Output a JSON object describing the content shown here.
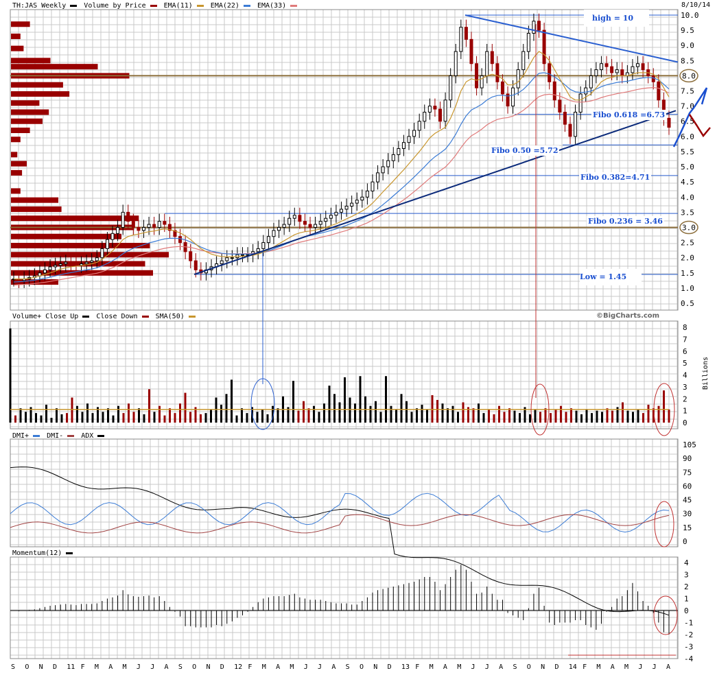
{
  "date_label": "8/10/14",
  "watermark": "©BigCharts.com",
  "y_unit_volume": "Billions",
  "legends": {
    "price": [
      {
        "text": "TH:JAS Weekly",
        "color": "#000000"
      },
      {
        "text": "Volume by Price",
        "color": "#990000"
      },
      {
        "text": "EMA(11)",
        "color": "#c8962e"
      },
      {
        "text": "EMA(22)",
        "color": "#3a7bd5"
      },
      {
        "text": "EMA(33)",
        "color": "#e07a7a"
      }
    ],
    "volume": [
      {
        "text": "Volume+ Close Up",
        "color": "#000000"
      },
      {
        "text": "Close Down",
        "color": "#990000"
      },
      {
        "text": "SMA(50)",
        "color": "#c8962e"
      }
    ],
    "dmi": [
      {
        "text": "DMI+",
        "color": "#3a7bd5"
      },
      {
        "text": "DMI-",
        "color": "#a04040"
      },
      {
        "text": "ADX",
        "color": "#000000"
      }
    ],
    "momentum": [
      {
        "text": "Momentum(12)",
        "color": "#000000"
      }
    ]
  },
  "annotations": {
    "high": "high = 10",
    "fibo618": "Fibo 0.618 =6.73",
    "fibo50": "Fibo 0.50 =5.72",
    "fibo382": "Fibo 0.382=4.71",
    "fibo236": "Fibo 0.236 = 3.46",
    "low": "Low = 1.45",
    "circle8": "8.0",
    "circle3": "3.0"
  },
  "x_ticks": [
    "S",
    "O",
    "N",
    "D",
    "11",
    "F",
    "M",
    "A",
    "M",
    "J",
    "J",
    "A",
    "S",
    "O",
    "N",
    "D",
    "12",
    "F",
    "M",
    "A",
    "M",
    "J",
    "J",
    "A",
    "S",
    "O",
    "N",
    "D",
    "13",
    "F",
    "M",
    "A",
    "M",
    "J",
    "J",
    "A",
    "S",
    "O",
    "N",
    "D",
    "14",
    "F",
    "M",
    "A",
    "M",
    "J",
    "J",
    "A"
  ],
  "chart_data": [
    {
      "type": "candlestick",
      "ylim": [
        0.5,
        10.0
      ],
      "yticks": [
        "0.5",
        "1.0",
        "1.5",
        "2.0",
        "2.5",
        "3.0",
        "3.5",
        "4.0",
        "4.5",
        "5.0",
        "5.5",
        "6.0",
        "6.5",
        "7.0",
        "7.5",
        "8.0",
        "8.5",
        "9.0",
        "9.5",
        "10.0"
      ],
      "close_series": [
        1.3,
        1.25,
        1.3,
        1.35,
        1.4,
        1.5,
        1.6,
        1.7,
        1.75,
        1.8,
        1.85,
        1.8,
        1.75,
        1.8,
        1.85,
        1.9,
        2.0,
        2.3,
        2.6,
        2.8,
        3.0,
        3.5,
        3.2,
        3.0,
        2.9,
        3.0,
        3.1,
        3.0,
        3.2,
        3.1,
        2.9,
        2.7,
        2.5,
        2.2,
        1.9,
        1.6,
        1.5,
        1.6,
        1.7,
        1.8,
        1.9,
        2.0,
        2.0,
        2.1,
        2.1,
        2.1,
        2.2,
        2.3,
        2.5,
        2.7,
        2.9,
        3.0,
        3.1,
        3.3,
        3.4,
        3.2,
        3.1,
        3.0,
        3.1,
        3.2,
        3.3,
        3.4,
        3.5,
        3.6,
        3.7,
        3.8,
        3.9,
        4.0,
        4.2,
        4.5,
        4.8,
        5.0,
        5.2,
        5.4,
        5.6,
        5.8,
        6.0,
        6.2,
        6.5,
        6.8,
        7.0,
        6.9,
        6.5,
        7.2,
        8.0,
        8.8,
        9.6,
        9.2,
        8.4,
        7.6,
        8.0,
        8.8,
        8.4,
        7.8,
        7.4,
        7.0,
        7.6,
        8.2,
        8.8,
        9.4,
        9.8,
        9.5,
        8.4,
        7.8,
        7.2,
        6.8,
        6.4,
        6.0,
        6.8,
        7.4,
        7.6,
        8.0,
        8.2,
        8.4,
        8.3,
        8.1,
        8.2,
        8.0,
        8.1,
        8.3,
        8.4,
        8.2,
        8.0,
        7.8,
        7.2,
        6.6,
        6.3
      ],
      "ema11": [
        1.3,
        1.3,
        1.3,
        1.32,
        1.35,
        1.4,
        1.45,
        1.5,
        1.56,
        1.62,
        1.67,
        1.7,
        1.72,
        1.74,
        1.77,
        1.8,
        1.85,
        1.95,
        2.08,
        2.23,
        2.4,
        2.6,
        2.7,
        2.75,
        2.78,
        2.82,
        2.86,
        2.88,
        2.92,
        2.95,
        2.93,
        2.88,
        2.82,
        2.72,
        2.6,
        2.45,
        2.3,
        2.2,
        2.12,
        2.07,
        2.04,
        2.03,
        2.03,
        2.04,
        2.05,
        2.06,
        2.08,
        2.12,
        2.18,
        2.26,
        2.36,
        2.46,
        2.56,
        2.66,
        2.76,
        2.82,
        2.86,
        2.88,
        2.91,
        2.95,
        3.0,
        3.06,
        3.12,
        3.2,
        3.28,
        3.36,
        3.45,
        3.54,
        3.65,
        3.8,
        3.98,
        4.17,
        4.35,
        4.53,
        4.72,
        4.9,
        5.1,
        5.3,
        5.5,
        5.72,
        5.95,
        6.1,
        6.2,
        6.3,
        6.6,
        7.0,
        7.5,
        7.8,
        7.9,
        7.85,
        7.9,
        8.0,
        8.05,
        8.0,
        7.9,
        7.7,
        7.7,
        7.8,
        8.0,
        8.3,
        8.6,
        8.8,
        8.7,
        8.5,
        8.2,
        7.9,
        7.6,
        7.3,
        7.2,
        7.2,
        7.3,
        7.4,
        7.6,
        7.8,
        7.9,
        7.95,
        8.0,
        8.0,
        8.0,
        8.05,
        8.1,
        8.1,
        8.1,
        8.05,
        7.9,
        7.6,
        7.3
      ],
      "ema22": [
        1.2,
        1.21,
        1.22,
        1.24,
        1.26,
        1.29,
        1.32,
        1.36,
        1.4,
        1.44,
        1.48,
        1.51,
        1.54,
        1.57,
        1.6,
        1.63,
        1.67,
        1.73,
        1.81,
        1.9,
        2.0,
        2.13,
        2.23,
        2.31,
        2.37,
        2.43,
        2.49,
        2.53,
        2.58,
        2.62,
        2.64,
        2.64,
        2.63,
        2.59,
        2.52,
        2.44,
        2.35,
        2.28,
        2.22,
        2.18,
        2.15,
        2.13,
        2.12,
        2.12,
        2.12,
        2.12,
        2.13,
        2.15,
        2.18,
        2.23,
        2.29,
        2.36,
        2.43,
        2.5,
        2.58,
        2.64,
        2.69,
        2.73,
        2.77,
        2.81,
        2.85,
        2.9,
        2.95,
        3.01,
        3.07,
        3.14,
        3.21,
        3.29,
        3.38,
        3.49,
        3.61,
        3.75,
        3.89,
        4.04,
        4.19,
        4.34,
        4.5,
        4.66,
        4.83,
        5.0,
        5.18,
        5.33,
        5.45,
        5.58,
        5.8,
        6.07,
        6.4,
        6.68,
        6.87,
        6.96,
        7.06,
        7.2,
        7.3,
        7.35,
        7.36,
        7.33,
        7.36,
        7.43,
        7.55,
        7.72,
        7.92,
        8.08,
        8.1,
        8.06,
        7.96,
        7.84,
        7.7,
        7.55,
        7.47,
        7.45,
        7.46,
        7.5,
        7.56,
        7.64,
        7.7,
        7.74,
        7.78,
        7.8,
        7.82,
        7.86,
        7.9,
        7.93,
        7.94,
        7.93,
        7.86,
        7.72,
        7.56
      ],
      "ema33": [
        1.1,
        1.11,
        1.12,
        1.13,
        1.15,
        1.17,
        1.19,
        1.22,
        1.25,
        1.28,
        1.31,
        1.34,
        1.37,
        1.4,
        1.43,
        1.46,
        1.49,
        1.54,
        1.6,
        1.67,
        1.75,
        1.85,
        1.93,
        2.0,
        2.06,
        2.12,
        2.17,
        2.22,
        2.27,
        2.31,
        2.34,
        2.36,
        2.37,
        2.36,
        2.34,
        2.3,
        2.25,
        2.21,
        2.18,
        2.16,
        2.14,
        2.13,
        2.13,
        2.13,
        2.13,
        2.14,
        2.14,
        2.16,
        2.18,
        2.21,
        2.25,
        2.3,
        2.35,
        2.4,
        2.46,
        2.51,
        2.55,
        2.59,
        2.63,
        2.67,
        2.71,
        2.75,
        2.8,
        2.85,
        2.9,
        2.96,
        3.02,
        3.08,
        3.15,
        3.24,
        3.34,
        3.44,
        3.55,
        3.67,
        3.79,
        3.91,
        4.04,
        4.18,
        4.32,
        4.47,
        4.62,
        4.75,
        4.87,
        4.99,
        5.17,
        5.38,
        5.63,
        5.85,
        6.02,
        6.12,
        6.24,
        6.38,
        6.48,
        6.56,
        6.6,
        6.62,
        6.67,
        6.75,
        6.86,
        7.0,
        7.17,
        7.31,
        7.37,
        7.39,
        7.37,
        7.33,
        7.26,
        7.18,
        7.14,
        7.13,
        7.14,
        7.17,
        7.22,
        7.28,
        7.33,
        7.37,
        7.41,
        7.44,
        7.47,
        7.51,
        7.55,
        7.58,
        7.6,
        7.61,
        7.59,
        7.52,
        7.43
      ],
      "volume_by_price": [
        {
          "price": 9.7,
          "relative": 0.12
        },
        {
          "price": 9.3,
          "relative": 0.06
        },
        {
          "price": 8.9,
          "relative": 0.08
        },
        {
          "price": 8.5,
          "relative": 0.25
        },
        {
          "price": 8.3,
          "relative": 0.55
        },
        {
          "price": 8.0,
          "relative": 0.75
        },
        {
          "price": 7.7,
          "relative": 0.33
        },
        {
          "price": 7.4,
          "relative": 0.37
        },
        {
          "price": 7.1,
          "relative": 0.18
        },
        {
          "price": 6.8,
          "relative": 0.24
        },
        {
          "price": 6.5,
          "relative": 0.2
        },
        {
          "price": 6.2,
          "relative": 0.12
        },
        {
          "price": 5.9,
          "relative": 0.06
        },
        {
          "price": 5.4,
          "relative": 0.04
        },
        {
          "price": 5.1,
          "relative": 0.1
        },
        {
          "price": 4.8,
          "relative": 0.07
        },
        {
          "price": 4.2,
          "relative": 0.06
        },
        {
          "price": 3.9,
          "relative": 0.3
        },
        {
          "price": 3.6,
          "relative": 0.32
        },
        {
          "price": 3.3,
          "relative": 0.81
        },
        {
          "price": 3.0,
          "relative": 0.78
        },
        {
          "price": 2.7,
          "relative": 0.7
        },
        {
          "price": 2.4,
          "relative": 0.88
        },
        {
          "price": 2.1,
          "relative": 1.0
        },
        {
          "price": 1.8,
          "relative": 0.85
        },
        {
          "price": 1.5,
          "relative": 0.9
        },
        {
          "price": 1.2,
          "relative": 0.3
        }
      ],
      "fibo_levels": [
        {
          "label": "high",
          "value": 10.0
        },
        {
          "label": "fibo618",
          "value": 6.73
        },
        {
          "label": "fibo50",
          "value": 5.72
        },
        {
          "label": "fibo382",
          "value": 4.71
        },
        {
          "label": "fibo236",
          "value": 3.46
        },
        {
          "label": "low",
          "value": 1.45
        }
      ],
      "horizontal_lines": [
        8.0,
        3.0
      ]
    },
    {
      "type": "bar",
      "name": "volume",
      "ylim": [
        0,
        8
      ],
      "yticks": [
        "0",
        "1",
        "2",
        "3",
        "4",
        "5",
        "6",
        "7",
        "8"
      ],
      "values": [
        7.9,
        0.6,
        1.2,
        0.9,
        1.3,
        0.8,
        0.6,
        1.5,
        0.4,
        1.2,
        0.7,
        0.8,
        2.1,
        1.4,
        0.9,
        1.6,
        0.8,
        1.3,
        0.9,
        1.2,
        0.6,
        1.4,
        0.8,
        1.6,
        0.9,
        1.2,
        0.7,
        2.8,
        0.9,
        1.4,
        0.6,
        1.2,
        0.8,
        1.6,
        2.5,
        0.9,
        1.3,
        0.7,
        0.8,
        1.1,
        2.1,
        1.5,
        2.4,
        3.6,
        0.6,
        1.2,
        0.8,
        1.3,
        0.9,
        1.1,
        0.7,
        1.4,
        1.2,
        2.2,
        1.3,
        3.5,
        1.0,
        1.8,
        1.2,
        1.4,
        0.9,
        1.6,
        3.1,
        2.4,
        1.7,
        3.8,
        2.1,
        1.6,
        3.9,
        2.2,
        1.4,
        1.8,
        0.9,
        3.9,
        1.4,
        1.1,
        2.4,
        1.8,
        0.9,
        1.2,
        1.5,
        1.1,
        2.3,
        1.9,
        1.6,
        1.2,
        1.4,
        0.9,
        1.7,
        1.3,
        1.2,
        1.6,
        0.8,
        1.1,
        0.7,
        1.4,
        0.9,
        1.2,
        1.0,
        0.8,
        1.3,
        0.7,
        1.1,
        0.9,
        1.2,
        0.8,
        1.1,
        1.4,
        0.9,
        1.2,
        1.0,
        0.7,
        1.1,
        0.8,
        1.0,
        0.9,
        1.2,
        1.0,
        1.3,
        1.7,
        1.0,
        0.9,
        1.1,
        0.8,
        1.5,
        1.2,
        1.4,
        2.7,
        1.1
      ],
      "sma50": 1.1
    },
    {
      "type": "line",
      "name": "dmi",
      "ylim": [
        0,
        105
      ],
      "yticks": [
        "0",
        "15",
        "30",
        "45",
        "60",
        "75",
        "90",
        "105"
      ]
    },
    {
      "type": "bar",
      "name": "momentum",
      "ylim": [
        -4,
        4
      ],
      "yticks": [
        "4",
        "3",
        "2",
        "1",
        "0",
        "-1",
        "-2",
        "-3",
        "-4"
      ]
    }
  ]
}
